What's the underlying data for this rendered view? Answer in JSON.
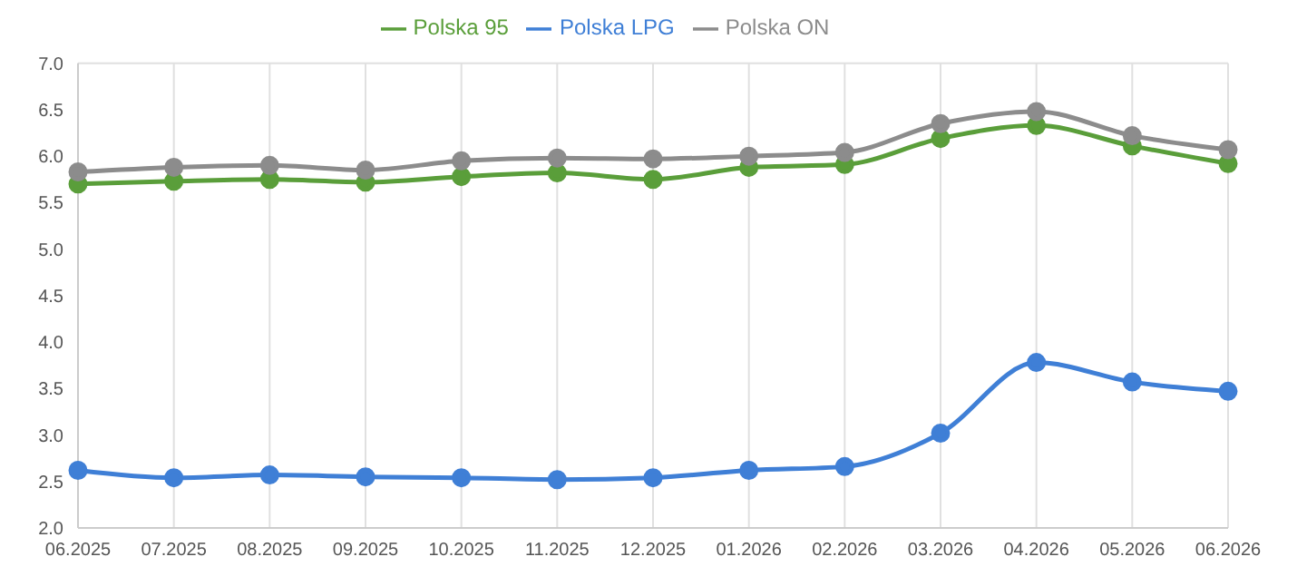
{
  "chart_data": {
    "type": "line",
    "categories": [
      "06.2025",
      "07.2025",
      "08.2025",
      "09.2025",
      "10.2025",
      "11.2025",
      "12.2025",
      "01.2026",
      "02.2026",
      "03.2026",
      "04.2026",
      "05.2026",
      "06.2026"
    ],
    "series": [
      {
        "name": "Polska 95",
        "color": "#5a9e3a",
        "values": [
          5.7,
          5.73,
          5.75,
          5.72,
          5.78,
          5.82,
          5.75,
          5.88,
          5.91,
          6.19,
          6.33,
          6.11,
          5.92
        ]
      },
      {
        "name": "Polska ON",
        "color": "#8c8c8c",
        "values": [
          5.83,
          5.88,
          5.9,
          5.85,
          5.95,
          5.98,
          5.97,
          6.0,
          6.04,
          6.35,
          6.48,
          6.22,
          6.07
        ]
      },
      {
        "name": "Polska LPG",
        "color": "#3f7fd6",
        "values": [
          2.62,
          2.54,
          2.57,
          2.55,
          2.54,
          2.52,
          2.54,
          2.62,
          2.66,
          3.02,
          3.78,
          3.57,
          3.47
        ]
      }
    ],
    "ylim": [
      2.0,
      7.0
    ],
    "yticks": [
      {
        "value": 2,
        "label": "2.0"
      },
      {
        "value": 2.5,
        "label": "2.5"
      },
      {
        "value": 3,
        "label": "3.0"
      },
      {
        "value": 3.5,
        "label": "3.5"
      },
      {
        "value": 4,
        "label": "4.0"
      },
      {
        "value": 4.5,
        "label": "4.5"
      },
      {
        "value": 5,
        "label": "5.0"
      },
      {
        "value": 5.5,
        "label": "5.5"
      },
      {
        "value": 6,
        "label": "6.0"
      },
      {
        "value": 6.5,
        "label": "6.5"
      },
      {
        "value": 7,
        "label": "7.0"
      }
    ],
    "grid": true,
    "legend": "top",
    "marker": "circle",
    "line_style": "solid"
  }
}
